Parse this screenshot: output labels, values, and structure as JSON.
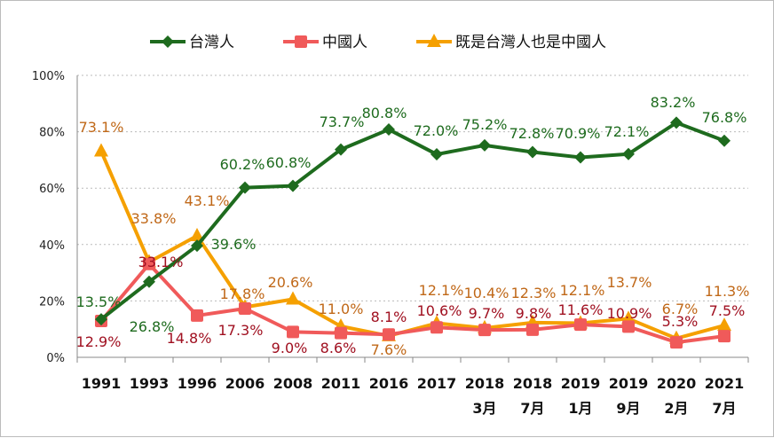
{
  "chart_data": {
    "type": "line",
    "title": "",
    "categories": [
      "1991",
      "1993",
      "1996",
      "2006",
      "2008",
      "2011",
      "2016",
      "2017",
      "2018\n3月",
      "2018\n7月",
      "2019\n1月",
      "2019\n9月",
      "2020\n2月",
      "2021\n7月"
    ],
    "yticks": [
      "0%",
      "20%",
      "40%",
      "60%",
      "80%",
      "100%"
    ],
    "ylim": [
      0,
      100
    ],
    "grid": "horizontal dotted",
    "legend": "top",
    "series": [
      {
        "name": "台灣人",
        "color": "#1e6b1e",
        "marker": "diamond",
        "label_color": "#1e6b1e",
        "values": [
          13.5,
          26.8,
          39.6,
          60.2,
          60.8,
          73.7,
          80.8,
          72.0,
          75.2,
          72.8,
          70.9,
          72.1,
          83.2,
          76.8
        ]
      },
      {
        "name": "中國人",
        "color": "#f05a5a",
        "marker": "square",
        "label_color": "#a01020",
        "values": [
          12.9,
          33.1,
          14.8,
          17.3,
          9.0,
          8.6,
          8.1,
          10.6,
          9.7,
          9.8,
          11.6,
          10.9,
          5.3,
          7.5
        ]
      },
      {
        "name": "既是台灣人也是中國人",
        "color": "#f5a000",
        "marker": "triangle",
        "label_color": "#c06818",
        "values": [
          73.1,
          33.8,
          43.1,
          17.8,
          20.6,
          11.0,
          7.6,
          12.1,
          10.4,
          12.3,
          12.1,
          13.7,
          6.7,
          11.3
        ]
      }
    ]
  }
}
